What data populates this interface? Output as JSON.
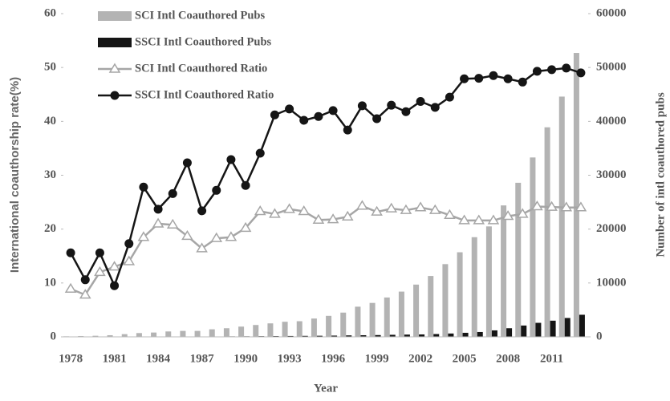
{
  "chart_data": {
    "type": "combo",
    "xlabel": "Year",
    "ylabel": "International coauthorship rate(%)",
    "y2label": "Number of intl coauthored pubs",
    "categories": [
      "1978",
      null,
      null,
      "1981",
      null,
      null,
      "1984",
      null,
      null,
      "1987",
      null,
      null,
      "1990",
      null,
      null,
      "1993",
      null,
      null,
      "1996",
      null,
      null,
      "1999",
      null,
      null,
      "2002",
      null,
      null,
      "2005",
      null,
      null,
      "2008",
      null,
      null,
      "2011",
      null,
      null
    ],
    "ylim": [
      0,
      60
    ],
    "yticks": [
      0,
      10,
      20,
      30,
      40,
      50,
      60
    ],
    "y2lim": [
      0,
      60000
    ],
    "y2ticks": [
      0,
      10000,
      20000,
      30000,
      40000,
      50000,
      60000
    ],
    "legend": "upper left",
    "series": [
      {
        "name": "SCI Intl Coauthored Pubs",
        "type": "bar",
        "axis": "y2",
        "color": "#b3b3b3",
        "values": [
          100,
          150,
          200,
          300,
          500,
          700,
          800,
          1000,
          1100,
          1100,
          1400,
          1600,
          1900,
          2200,
          2500,
          2800,
          2900,
          3400,
          3900,
          4500,
          5600,
          6300,
          7300,
          8400,
          9700,
          11300,
          13500,
          15700,
          18500,
          20500,
          24400,
          28600,
          33300,
          38900,
          44600,
          52700
        ]
      },
      {
        "name": "SSCI Intl Coauthored Pubs",
        "type": "bar",
        "axis": "y2",
        "color": "#151515",
        "values": [
          10,
          10,
          10,
          20,
          20,
          30,
          40,
          50,
          60,
          60,
          70,
          90,
          100,
          120,
          140,
          160,
          180,
          200,
          230,
          270,
          300,
          330,
          380,
          420,
          450,
          520,
          620,
          750,
          900,
          1200,
          1600,
          2100,
          2600,
          3000,
          3500,
          4100
        ]
      },
      {
        "name": "SCI Intl Coauthored Ratio",
        "type": "line",
        "marker": "triangle",
        "color": "#a6a6a6",
        "values": [
          8.9,
          7.8,
          12.0,
          13.0,
          14.0,
          18.5,
          21.0,
          20.8,
          18.7,
          16.4,
          18.3,
          18.5,
          20.2,
          23.3,
          22.8,
          23.7,
          23.3,
          21.7,
          21.8,
          22.3,
          24.3,
          23.2,
          23.8,
          23.5,
          24.0,
          23.5,
          22.6,
          21.6,
          21.6,
          21.6,
          22.4,
          22.8,
          24.2,
          24.1,
          24.0,
          24.0
        ]
      },
      {
        "name": "SSCI Intl Coauthored Ratio",
        "type": "line",
        "marker": "circle",
        "color": "#151515",
        "values": [
          15.6,
          10.6,
          15.6,
          9.5,
          17.3,
          27.8,
          23.7,
          26.6,
          32.3,
          23.4,
          27.2,
          32.9,
          28.1,
          34.1,
          41.2,
          42.3,
          40.2,
          40.9,
          42.0,
          38.4,
          42.9,
          40.5,
          43.0,
          41.8,
          43.7,
          42.6,
          44.5,
          47.9,
          48.0,
          48.5,
          47.9,
          47.3,
          49.3,
          49.6,
          49.9,
          49.0
        ]
      }
    ]
  }
}
